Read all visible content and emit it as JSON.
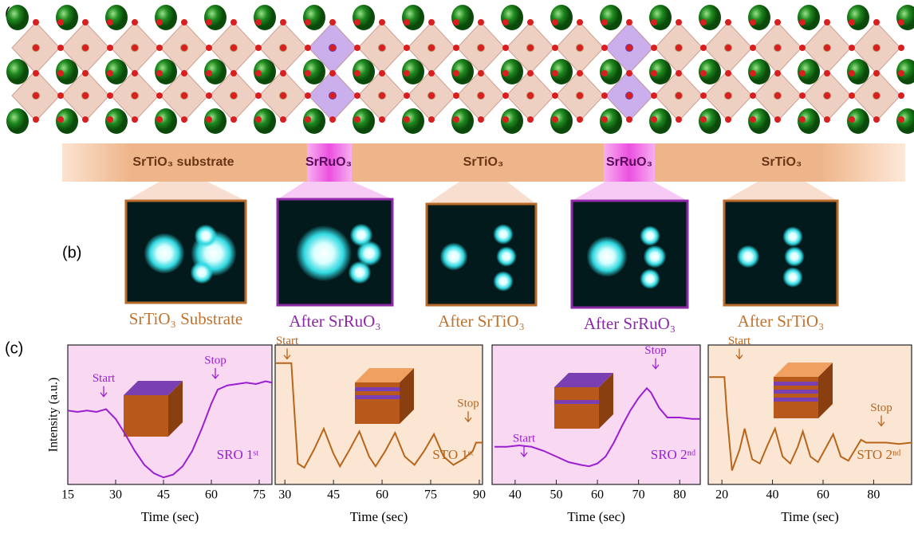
{
  "panel_labels": [
    "(a)",
    "(b)",
    "(c)"
  ],
  "layers": [
    "SrTiO₃ substrate",
    "SrRuO₃",
    "SrTiO₃",
    "SrRuO₃",
    "SrTiO₃"
  ],
  "rheed_captions": [
    "SrTiO₃ Substrate",
    "After SrRuO₃",
    "After SrTiO₃",
    "After SrRuO₃",
    "After SrTiO₃"
  ],
  "chart_data": [
    {
      "type": "line",
      "x_label": "Time (sec)",
      "y_label": "Intensity (a.u.)",
      "label": "SRO 1ˢᵗ",
      "annotations": [
        "Start",
        "Stop"
      ],
      "background": "#f8d9f1",
      "x": [
        15,
        18,
        21,
        24,
        27,
        30,
        33,
        36,
        39,
        42,
        45,
        48,
        51,
        54,
        57,
        60,
        62,
        65,
        68,
        71,
        74,
        77,
        79
      ],
      "series": [
        {
          "color": "#9b1fd0",
          "values": [
            0.53,
            0.52,
            0.53,
            0.52,
            0.54,
            0.47,
            0.36,
            0.24,
            0.14,
            0.08,
            0.05,
            0.07,
            0.13,
            0.24,
            0.4,
            0.58,
            0.68,
            0.71,
            0.72,
            0.73,
            0.72,
            0.74,
            0.73
          ]
        }
      ],
      "xlim": [
        15,
        79
      ],
      "ylim": [
        0,
        1
      ],
      "xticks": [
        15,
        30,
        45,
        60,
        75
      ]
    },
    {
      "type": "line",
      "x_label": "Time (sec)",
      "label": "STO 1ˢᵗ",
      "annotations": [
        "Start",
        "Stop"
      ],
      "background": "#fbe6d3",
      "x": [
        27,
        30,
        32,
        33,
        34,
        36,
        39,
        42,
        45,
        47,
        50,
        53,
        56,
        58,
        61,
        64,
        67,
        70,
        73,
        76,
        79,
        82,
        85,
        88,
        89,
        91
      ],
      "series": [
        {
          "color": "#b8651c",
          "values": [
            0.87,
            0.87,
            0.87,
            0.5,
            0.15,
            0.12,
            0.25,
            0.4,
            0.22,
            0.13,
            0.25,
            0.38,
            0.2,
            0.13,
            0.24,
            0.37,
            0.2,
            0.14,
            0.24,
            0.36,
            0.2,
            0.14,
            0.18,
            0.24,
            0.3,
            0.3
          ]
        }
      ],
      "xlim": [
        27,
        91
      ],
      "ylim": [
        0,
        1
      ],
      "xticks": [
        30,
        45,
        60,
        75,
        90
      ]
    },
    {
      "type": "line",
      "x_label": "Time (sec)",
      "label": "SRO 2ⁿᵈ",
      "annotations": [
        "Start",
        "Stop"
      ],
      "background": "#f8d9f1",
      "x": [
        35,
        38,
        41,
        44,
        47,
        50,
        53,
        56,
        58,
        60,
        62,
        64,
        66,
        68,
        70,
        72,
        73,
        75,
        77,
        80,
        83,
        85
      ],
      "series": [
        {
          "color": "#9b1fd0",
          "values": [
            0.27,
            0.27,
            0.28,
            0.27,
            0.24,
            0.2,
            0.16,
            0.14,
            0.13,
            0.15,
            0.2,
            0.3,
            0.42,
            0.53,
            0.62,
            0.69,
            0.66,
            0.55,
            0.48,
            0.48,
            0.47,
            0.47
          ]
        }
      ],
      "xlim": [
        34.4,
        85
      ],
      "ylim": [
        0,
        1
      ],
      "xticks": [
        40,
        50,
        60,
        70,
        80
      ]
    },
    {
      "type": "line",
      "x_label": "Time (sec)",
      "label": "STO 2ⁿᵈ",
      "annotations": [
        "Start",
        "Stop"
      ],
      "background": "#fbe6d3",
      "x": [
        15,
        18,
        21,
        22,
        24,
        27,
        29,
        32,
        35,
        38,
        41,
        44,
        47,
        50,
        52,
        55,
        58,
        61,
        64,
        67,
        70,
        73,
        75,
        77,
        80,
        85,
        90,
        95
      ],
      "series": [
        {
          "color": "#b8651c",
          "values": [
            0.77,
            0.77,
            0.77,
            0.5,
            0.1,
            0.25,
            0.4,
            0.18,
            0.15,
            0.28,
            0.4,
            0.2,
            0.15,
            0.27,
            0.38,
            0.2,
            0.16,
            0.26,
            0.36,
            0.2,
            0.17,
            0.26,
            0.32,
            0.3,
            0.3,
            0.3,
            0.29,
            0.3
          ]
        }
      ],
      "xlim": [
        14.6,
        95
      ],
      "ylim": [
        0,
        1
      ],
      "xticks": [
        20,
        40,
        60,
        80
      ]
    }
  ]
}
